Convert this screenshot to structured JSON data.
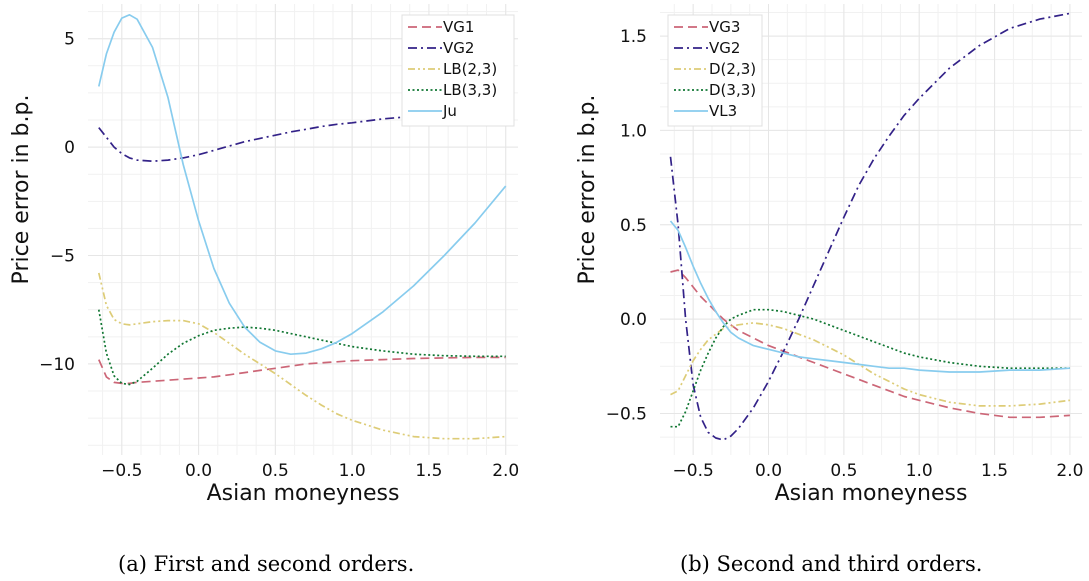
{
  "captions": {
    "a": "(a) First and second orders.",
    "b": "(b) Second and third orders."
  },
  "chart_data": [
    {
      "type": "line",
      "xlabel": "Asian moneyness",
      "ylabel": "Price error in b.p.",
      "xlim": [
        -0.72,
        2.08
      ],
      "ylim": [
        -14.2,
        6.6
      ],
      "xticks": [
        -0.5,
        0.0,
        0.5,
        1.0,
        1.5,
        2.0
      ],
      "xtick_labels": [
        "−0.5",
        "0.0",
        "0.5",
        "1.0",
        "1.5",
        "2.0"
      ],
      "yticks": [
        -10,
        -5,
        0,
        5
      ],
      "ytick_labels": [
        "−10",
        "−5",
        "0",
        "5"
      ],
      "grid": true,
      "legend_position": "top-right",
      "x": [
        -0.65,
        -0.6,
        -0.55,
        -0.5,
        -0.45,
        -0.4,
        -0.3,
        -0.2,
        -0.1,
        0.0,
        0.1,
        0.2,
        0.3,
        0.4,
        0.5,
        0.6,
        0.7,
        0.8,
        0.9,
        1.0,
        1.2,
        1.4,
        1.6,
        1.8,
        2.0
      ],
      "series": [
        {
          "name": "VG1",
          "color": "#cc6677",
          "dash": "dashed",
          "values": [
            -9.8,
            -10.6,
            -10.85,
            -10.9,
            -10.9,
            -10.85,
            -10.8,
            -10.75,
            -10.7,
            -10.65,
            -10.6,
            -10.5,
            -10.4,
            -10.3,
            -10.2,
            -10.1,
            -10.0,
            -9.95,
            -9.9,
            -9.85,
            -9.8,
            -9.75,
            -9.72,
            -9.7,
            -9.7
          ]
        },
        {
          "name": "VG2",
          "color": "#332288",
          "dash": "dashdot",
          "values": [
            0.9,
            0.45,
            0.0,
            -0.3,
            -0.5,
            -0.6,
            -0.65,
            -0.6,
            -0.5,
            -0.35,
            -0.15,
            0.05,
            0.25,
            0.4,
            0.55,
            0.7,
            0.82,
            0.95,
            1.05,
            1.12,
            1.3,
            1.42,
            1.5,
            1.55,
            1.6
          ]
        },
        {
          "name": "LB(2,3)",
          "color": "#ddcc77",
          "dash": "dashdotdot",
          "values": [
            -5.8,
            -7.3,
            -7.95,
            -8.15,
            -8.2,
            -8.15,
            -8.05,
            -8.0,
            -8.0,
            -8.15,
            -8.55,
            -9.05,
            -9.55,
            -10.0,
            -10.45,
            -10.95,
            -11.45,
            -11.9,
            -12.3,
            -12.6,
            -13.05,
            -13.35,
            -13.45,
            -13.45,
            -13.35
          ]
        },
        {
          "name": "LB(3,3)",
          "color": "#117733",
          "dash": "dotted",
          "values": [
            -7.5,
            -9.5,
            -10.55,
            -10.9,
            -10.95,
            -10.8,
            -10.2,
            -9.55,
            -9.05,
            -8.7,
            -8.45,
            -8.35,
            -8.3,
            -8.35,
            -8.45,
            -8.6,
            -8.75,
            -8.9,
            -9.05,
            -9.2,
            -9.4,
            -9.55,
            -9.62,
            -9.65,
            -9.65
          ]
        },
        {
          "name": "Ju",
          "color": "#88ccee",
          "dash": "solid",
          "values": [
            2.8,
            4.3,
            5.3,
            5.95,
            6.1,
            5.9,
            4.6,
            2.3,
            -0.8,
            -3.4,
            -5.6,
            -7.2,
            -8.3,
            -9.0,
            -9.4,
            -9.55,
            -9.5,
            -9.3,
            -9.0,
            -8.6,
            -7.6,
            -6.4,
            -5.0,
            -3.5,
            -1.8
          ]
        }
      ]
    },
    {
      "type": "line",
      "xlabel": "Asian moneyness",
      "ylabel": "Price error in b.p.",
      "xlim": [
        -0.72,
        2.08
      ],
      "ylim": [
        -0.72,
        1.67
      ],
      "xticks": [
        -0.5,
        0.0,
        0.5,
        1.0,
        1.5,
        2.0
      ],
      "xtick_labels": [
        "−0.5",
        "0.0",
        "0.5",
        "1.0",
        "1.5",
        "2.0"
      ],
      "yticks": [
        -0.5,
        0.0,
        0.5,
        1.0,
        1.5
      ],
      "ytick_labels": [
        "−0.5",
        "0.0",
        "0.5",
        "1.0",
        "1.5"
      ],
      "grid": true,
      "legend_position": "top-left",
      "x": [
        -0.65,
        -0.6,
        -0.55,
        -0.5,
        -0.45,
        -0.4,
        -0.35,
        -0.3,
        -0.25,
        -0.2,
        -0.1,
        0.0,
        0.1,
        0.2,
        0.3,
        0.4,
        0.5,
        0.6,
        0.7,
        0.8,
        0.9,
        1.0,
        1.2,
        1.4,
        1.6,
        1.8,
        2.0
      ],
      "series": [
        {
          "name": "VG3",
          "color": "#cc6677",
          "dash": "dashed",
          "values": [
            0.25,
            0.26,
            0.22,
            0.17,
            0.12,
            0.08,
            0.04,
            0.0,
            -0.03,
            -0.06,
            -0.1,
            -0.14,
            -0.17,
            -0.2,
            -0.23,
            -0.26,
            -0.29,
            -0.32,
            -0.35,
            -0.38,
            -0.41,
            -0.43,
            -0.47,
            -0.5,
            -0.52,
            -0.52,
            -0.51
          ]
        },
        {
          "name": "VG2",
          "color": "#332288",
          "dash": "dashdot",
          "values": [
            0.86,
            0.5,
            0.0,
            -0.35,
            -0.52,
            -0.6,
            -0.63,
            -0.64,
            -0.62,
            -0.58,
            -0.47,
            -0.33,
            -0.17,
            0.0,
            0.18,
            0.36,
            0.54,
            0.71,
            0.85,
            0.97,
            1.08,
            1.17,
            1.33,
            1.45,
            1.54,
            1.59,
            1.62
          ]
        },
        {
          "name": "D(2,3)",
          "color": "#ddcc77",
          "dash": "dashdotdot",
          "values": [
            -0.4,
            -0.38,
            -0.3,
            -0.22,
            -0.16,
            -0.11,
            -0.08,
            -0.05,
            -0.04,
            -0.03,
            -0.02,
            -0.03,
            -0.05,
            -0.08,
            -0.11,
            -0.15,
            -0.19,
            -0.24,
            -0.29,
            -0.33,
            -0.37,
            -0.4,
            -0.44,
            -0.46,
            -0.46,
            -0.45,
            -0.43
          ]
        },
        {
          "name": "D(3,3)",
          "color": "#117733",
          "dash": "dotted",
          "values": [
            -0.57,
            -0.57,
            -0.49,
            -0.38,
            -0.27,
            -0.18,
            -0.1,
            -0.04,
            0.0,
            0.02,
            0.05,
            0.05,
            0.04,
            0.02,
            0.0,
            -0.03,
            -0.06,
            -0.09,
            -0.12,
            -0.15,
            -0.18,
            -0.2,
            -0.23,
            -0.25,
            -0.26,
            -0.26,
            -0.26
          ]
        },
        {
          "name": "VL3",
          "color": "#88ccee",
          "dash": "solid",
          "values": [
            0.52,
            0.47,
            0.38,
            0.28,
            0.19,
            0.11,
            0.04,
            -0.02,
            -0.07,
            -0.1,
            -0.14,
            -0.16,
            -0.18,
            -0.2,
            -0.21,
            -0.22,
            -0.23,
            -0.24,
            -0.25,
            -0.26,
            -0.26,
            -0.27,
            -0.28,
            -0.28,
            -0.27,
            -0.27,
            -0.26
          ]
        }
      ]
    }
  ]
}
